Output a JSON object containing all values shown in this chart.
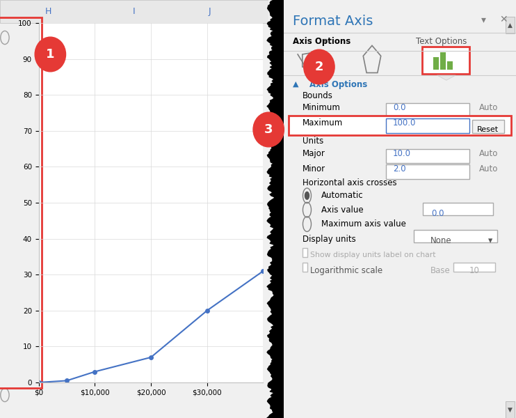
{
  "chart": {
    "x_data": [
      0,
      5000,
      10000,
      20000,
      30000,
      40000
    ],
    "y_data": [
      0,
      0.5,
      3,
      7,
      20,
      31
    ],
    "line_color": "#4472C4",
    "marker_color": "#4472C4",
    "xlim": [
      0,
      40000
    ],
    "ylim": [
      0,
      100
    ],
    "yticks": [
      0,
      10,
      20,
      30,
      40,
      50,
      60,
      70,
      80,
      90,
      100
    ],
    "xtick_labels": [
      "$0",
      "$10,000",
      "$20,000",
      "$30,000"
    ],
    "xtick_positions": [
      0,
      10000,
      20000,
      30000
    ],
    "grid_color": "#D9D9D9",
    "bg_color": "#FFFFFF",
    "spreadsheet_bg": "#F0F0F0",
    "col_headers": [
      "H",
      "I",
      "J"
    ],
    "col_header_color": "#4472C4"
  },
  "panel": {
    "bg_color": "#FFFFFF",
    "title": "Format Axis",
    "title_color": "#2E75B6",
    "subtitle1": "Axis Options",
    "subtitle2": "Text Options",
    "axis_options_label": "Axis Options",
    "axis_options_color": "#2E75B6",
    "bounds_label": "Bounds",
    "minimum_label": "Minimum",
    "minimum_value": "0.0",
    "maximum_label": "Maximum",
    "maximum_value": "100.0",
    "units_label": "Units",
    "major_label": "Major",
    "major_value": "10.0",
    "minor_label": "Minor",
    "minor_value": "2.0",
    "haxis_crosses": "Horizontal axis crosses",
    "auto_label": "Automatic",
    "axis_value_label": "Axis value",
    "axis_value_field": "0.0",
    "max_axis_label": "Maximum axis value",
    "display_units_label": "Display units",
    "display_units_value": "None",
    "show_display_label": "Show display units label on chart",
    "log_scale_label": "Logarithmic scale",
    "base_label": "Base",
    "base_value": "10",
    "red_box_color": "#E53935",
    "reset_label": "Reset"
  }
}
